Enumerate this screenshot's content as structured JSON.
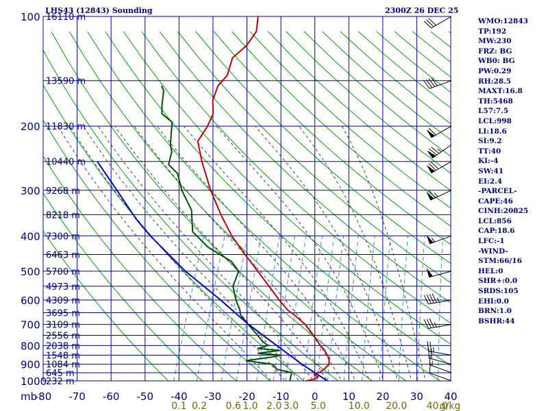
{
  "header": {
    "station": "LHS43 (12843) Sounding",
    "time": "2300Z 26 DEC 25"
  },
  "indices": [
    "WMO:12843",
    "TP:192",
    "MW:230",
    "FRZ: BG",
    "WB0: BG",
    "PW:0.29",
    "RH:28.5",
    "MAXT:16.8",
    "TH:5468",
    "L57:7.5",
    "LCL:998",
    "LI:18.6",
    "SI:9.2",
    "TT:40",
    "KI:-4",
    "SW:41",
    "EI:2.4",
    "-PARCEL-",
    "CAPE:46",
    "CINH:20825",
    "LCL:856",
    "CAP:18.6",
    "LFC:-1",
    "-WIND-",
    "STM:66/16",
    "HEL:0",
    "SHR+:0.0",
    "SRDS:105",
    "EHI:0.0",
    "BRN:1.0",
    "BSHR:44"
  ],
  "colors": {
    "temperature": "#c00000",
    "dewpoint": "#005000",
    "parcel": "#0000c0",
    "grid": "#0000a0",
    "dry_adiabat": "#00a000",
    "moist_adiabat": "#404040",
    "mixing_ratio": "#3090c0",
    "labels": "#000080",
    "mixing_labels": "#6a6a00"
  },
  "chart_data": {
    "type": "line",
    "title": "LHS43 (12843) Sounding",
    "pressure_axis": {
      "unit_label": "mb",
      "ticks": [
        100,
        200,
        300,
        400,
        500,
        600,
        700,
        800,
        900,
        1000
      ],
      "scale": "log",
      "range": [
        100,
        1050
      ]
    },
    "temperature_axis": {
      "ticks": [
        "-80",
        "-70",
        "-60",
        "-50",
        "-40",
        "-30",
        "-20",
        "-10",
        "0",
        "10",
        "20",
        "30",
        "40"
      ],
      "range": [
        -80,
        40
      ]
    },
    "height_labels": [
      {
        "p": 100,
        "label": "16110 m"
      },
      {
        "p": 150,
        "label": "13590 m"
      },
      {
        "p": 200,
        "label": "11830 m"
      },
      {
        "p": 250,
        "label": "10440 m"
      },
      {
        "p": 300,
        "label": "9268 m"
      },
      {
        "p": 350,
        "label": "8218 m"
      },
      {
        "p": 400,
        "label": "7300 m"
      },
      {
        "p": 450,
        "label": "6463 m"
      },
      {
        "p": 500,
        "label": "5700 m"
      },
      {
        "p": 550,
        "label": "4973 m"
      },
      {
        "p": 600,
        "label": "4309 m"
      },
      {
        "p": 650,
        "label": "3695 m"
      },
      {
        "p": 700,
        "label": "3109 m"
      },
      {
        "p": 750,
        "label": "2556 m"
      },
      {
        "p": 800,
        "label": "2038 m"
      },
      {
        "p": 850,
        "label": "1548 m"
      },
      {
        "p": 900,
        "label": "1084 m"
      },
      {
        "p": 950,
        "label": "645 m"
      },
      {
        "p": 1000,
        "label": "232 m"
      }
    ],
    "mixing_ratio_labels": [
      {
        "value": "0.1",
        "t": -40
      },
      {
        "value": "0.2",
        "t": -34
      },
      {
        "value": "0.6",
        "t": -24
      },
      {
        "value": "1.0",
        "t": -19
      },
      {
        "value": "2.0",
        "t": -12
      },
      {
        "value": "3.0",
        "t": -7
      },
      {
        "value": "5.0",
        "t": 1
      },
      {
        "value": "10.0",
        "t": 13
      },
      {
        "value": "20.0",
        "t": 24
      },
      {
        "value": "40.0",
        "t": 36
      }
    ],
    "mixing_ratio_unit": "g/kg",
    "series": [
      {
        "key": "temperature",
        "points": [
          {
            "p": 1006,
            "t": -3.9
          },
          {
            "p": 1000,
            "t": -2.5
          },
          {
            "p": 990,
            "t": -0.5
          },
          {
            "p": 975,
            "t": 0.5
          },
          {
            "p": 960,
            "t": -1
          },
          {
            "p": 945,
            "t": 0.6
          },
          {
            "p": 925,
            "t": 1.5
          },
          {
            "p": 900,
            "t": 2.2
          },
          {
            "p": 870,
            "t": 1.6
          },
          {
            "p": 850,
            "t": 0.6
          },
          {
            "p": 820,
            "t": -1.0
          },
          {
            "p": 800,
            "t": -2.6
          },
          {
            "p": 775,
            "t": -4.1
          },
          {
            "p": 740,
            "t": -6.5
          },
          {
            "p": 700,
            "t": -9.5
          },
          {
            "p": 680,
            "t": -11.6
          },
          {
            "p": 660,
            "t": -13.8
          },
          {
            "p": 640,
            "t": -16.3
          },
          {
            "p": 600,
            "t": -20.1
          },
          {
            "p": 560,
            "t": -23.7
          },
          {
            "p": 500,
            "t": -29.8
          },
          {
            "p": 450,
            "t": -35.5
          },
          {
            "p": 400,
            "t": -41.6
          },
          {
            "p": 350,
            "t": -47.3
          },
          {
            "p": 300,
            "t": -53.2
          },
          {
            "p": 250,
            "t": -59.2
          },
          {
            "p": 220,
            "t": -62.8
          },
          {
            "p": 200,
            "t": -61.7
          },
          {
            "p": 185,
            "t": -61.5
          },
          {
            "p": 170,
            "t": -63.2
          },
          {
            "p": 155,
            "t": -63.4
          },
          {
            "p": 145,
            "t": -61.9
          },
          {
            "p": 130,
            "t": -62.4
          },
          {
            "p": 120,
            "t": -59.7
          },
          {
            "p": 110,
            "t": -58.5
          },
          {
            "p": 100,
            "t": -59.8
          }
        ]
      },
      {
        "key": "dewpoint",
        "points": [
          {
            "p": 1006,
            "t": -7.4
          },
          {
            "p": 1000,
            "t": -7.4
          },
          {
            "p": 990,
            "t": -7.4
          },
          {
            "p": 975,
            "t": -7.6
          },
          {
            "p": 960,
            "t": -7.7
          },
          {
            "p": 950,
            "t": -7.8
          },
          {
            "p": 930,
            "t": -12.5
          },
          {
            "p": 900,
            "t": -14.5
          },
          {
            "p": 880,
            "t": -22.6
          },
          {
            "p": 860,
            "t": -15.5
          },
          {
            "p": 850,
            "t": -13.1
          },
          {
            "p": 840,
            "t": -20.0
          },
          {
            "p": 825,
            "t": -14.0
          },
          {
            "p": 815,
            "t": -20.6
          },
          {
            "p": 800,
            "t": -18.0
          },
          {
            "p": 780,
            "t": -20.0
          },
          {
            "p": 740,
            "t": -23.0
          },
          {
            "p": 700,
            "t": -26.3
          },
          {
            "p": 660,
            "t": -29.6
          },
          {
            "p": 640,
            "t": -30.4
          },
          {
            "p": 600,
            "t": -32.8
          },
          {
            "p": 550,
            "t": -35.3
          },
          {
            "p": 500,
            "t": -35.4
          },
          {
            "p": 470,
            "t": -38.7
          },
          {
            "p": 430,
            "t": -47.2
          },
          {
            "p": 390,
            "t": -53.6
          },
          {
            "p": 340,
            "t": -56.5
          },
          {
            "p": 300,
            "t": -61.7
          },
          {
            "p": 270,
            "t": -64.9
          },
          {
            "p": 255,
            "t": -68.6
          },
          {
            "p": 235,
            "t": -69.2
          },
          {
            "p": 225,
            "t": -70.4
          },
          {
            "p": 210,
            "t": -71.5
          },
          {
            "p": 195,
            "t": -72.6
          },
          {
            "p": 185,
            "t": -76.6
          },
          {
            "p": 175,
            "t": -77.6
          },
          {
            "p": 160,
            "t": -78.8
          },
          {
            "p": 155,
            "t": -80
          }
        ]
      },
      {
        "key": "parcel",
        "points": [
          {
            "p": 1006,
            "t": 4.2
          },
          {
            "p": 900,
            "t": -5.8
          },
          {
            "p": 800,
            "t": -15.4
          },
          {
            "p": 700,
            "t": -26.2
          },
          {
            "p": 600,
            "t": -37.3
          },
          {
            "p": 500,
            "t": -51.1
          },
          {
            "p": 400,
            "t": -65.6
          },
          {
            "p": 360,
            "t": -71.7
          },
          {
            "p": 300,
            "t": -80.8
          },
          {
            "p": 250,
            "t": -90
          }
        ]
      }
    ],
    "winds": [
      {
        "p": 1000,
        "dir": 290,
        "kt": 10
      },
      {
        "p": 950,
        "dir": 290,
        "kt": 15
      },
      {
        "p": 900,
        "dir": 285,
        "kt": 20
      },
      {
        "p": 850,
        "dir": 280,
        "kt": 25
      },
      {
        "p": 700,
        "dir": 260,
        "kt": 35
      },
      {
        "p": 600,
        "dir": 260,
        "kt": 45
      },
      {
        "p": 500,
        "dir": 255,
        "kt": 50
      },
      {
        "p": 400,
        "dir": 250,
        "kt": 55
      },
      {
        "p": 300,
        "dir": 245,
        "kt": 65
      },
      {
        "p": 250,
        "dir": 240,
        "kt": 70
      },
      {
        "p": 225,
        "dir": 235,
        "kt": 75
      },
      {
        "p": 200,
        "dir": 240,
        "kt": 60
      },
      {
        "p": 150,
        "dir": 250,
        "kt": 40
      },
      {
        "p": 100,
        "dir": 240,
        "kt": 30
      }
    ],
    "grid": true
  }
}
